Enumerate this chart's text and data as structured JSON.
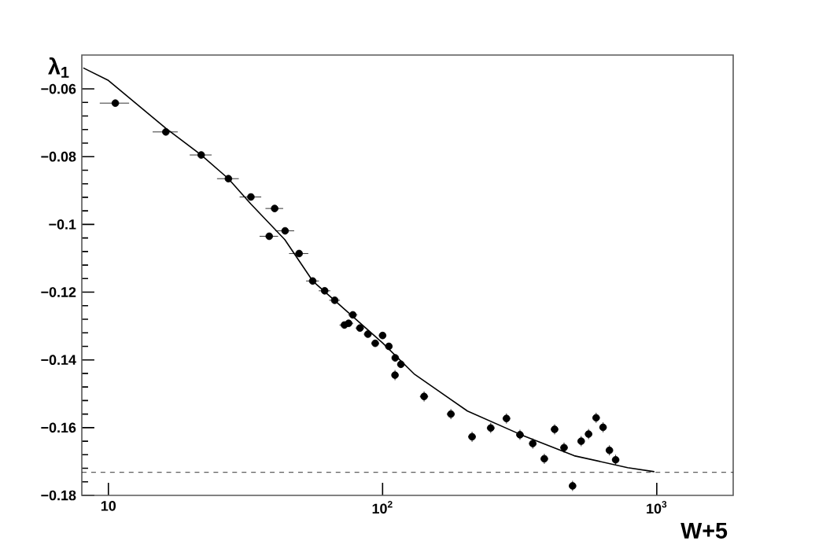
{
  "chart_data": {
    "type": "scatter",
    "xlabel": "W+5",
    "ylabel": "λ$_{1}$",
    "log": "x",
    "grid": false,
    "xlim": [
      8,
      1900
    ],
    "ylim": [
      -0.18,
      -0.05
    ],
    "xticks": [
      {
        "value": 10,
        "label": "10"
      },
      {
        "value": 100,
        "label": "10$^{2}$"
      },
      {
        "value": 1000,
        "label": "10$^{3}$"
      }
    ],
    "yticks": [
      {
        "value": -0.18,
        "label": "−0.18"
      },
      {
        "value": -0.16,
        "label": "−0.16"
      },
      {
        "value": -0.14,
        "label": "−0.14"
      },
      {
        "value": -0.12,
        "label": "−0.12"
      },
      {
        "value": -0.1,
        "label": "−0.1"
      },
      {
        "value": -0.08,
        "label": "−0.08"
      },
      {
        "value": -0.06,
        "label": "−0.06"
      }
    ],
    "series": [
      {
        "color": "#000000",
        "marker": "circle",
        "x": [
          10.6,
          16.2,
          21.8,
          27.4,
          33.1,
          40.4,
          38.6,
          44.1,
          49.6,
          55.6,
          61.5,
          66.9,
          72.6,
          75.2,
          77.9,
          82.7,
          88.4,
          94.0,
          100,
          105.4,
          111.2,
          111,
          116.6,
          141.7,
          177.5,
          212,
          248,
          283,
          317,
          353,
          389,
          424,
          459,
          493,
          530,
          564,
          601,
          637,
          672,
          708
        ],
        "values": [
          -0.0642,
          -0.0727,
          -0.0795,
          -0.0865,
          -0.0919,
          -0.0953,
          -0.1035,
          -0.1019,
          -0.1086,
          -0.1167,
          -0.1196,
          -0.1224,
          -0.1297,
          -0.1292,
          -0.1267,
          -0.1306,
          -0.1324,
          -0.1351,
          -0.1328,
          -0.136,
          -0.1394,
          -0.1445,
          -0.1413,
          -0.1508,
          -0.156,
          -0.1627,
          -0.1601,
          -0.1573,
          -0.1621,
          -0.1647,
          -0.1692,
          -0.1605,
          -0.1659,
          -0.1772,
          -0.164,
          -0.1619,
          -0.1571,
          -0.1599,
          -0.1667,
          -0.1695
        ],
        "xerrors": [
          1.3,
          1.7,
          2,
          2.5,
          3,
          3,
          3,
          3.5,
          4,
          3,
          3,
          3,
          3,
          3,
          3,
          3,
          3,
          3,
          3,
          3,
          3,
          3,
          3,
          5,
          6,
          7,
          8,
          9,
          10,
          11,
          12,
          13,
          14,
          15,
          16,
          17,
          18,
          19,
          20,
          21
        ],
        "errors": [
          0.001,
          0.001,
          0.001,
          0.001,
          0.001,
          0.001,
          0.001,
          0.001,
          0.001,
          0.001,
          0.001,
          0.001,
          0.001,
          0.001,
          0.001,
          0.001,
          0.001,
          0.001,
          0.001,
          0.001,
          0.001,
          0.0015,
          0.001,
          0.0015,
          0.0015,
          0.0015,
          0.0015,
          0.0015,
          0.0015,
          0.0015,
          0.0015,
          0.0015,
          0.0015,
          0.0015,
          0.0015,
          0.0015,
          0.0015,
          0.0015,
          0.0015,
          0.0015
        ]
      },
      {
        "type": "line",
        "color": "#000000",
        "marker": "none",
        "x": [
          8.1,
          10,
          16.2,
          21.8,
          27.4,
          33.1,
          44,
          55.6,
          100,
          131,
          204,
          320,
          500,
          783,
          980
        ],
        "values": [
          -0.0538,
          -0.0575,
          -0.0716,
          -0.0795,
          -0.0865,
          -0.094,
          -0.1045,
          -0.1167,
          -0.135,
          -0.1443,
          -0.1551,
          -0.1621,
          -0.1683,
          -0.1718,
          -0.173
        ]
      }
    ],
    "ref_lines": [
      {
        "axis": "y",
        "value": -0.1732,
        "line_style": "dashed"
      }
    ]
  }
}
